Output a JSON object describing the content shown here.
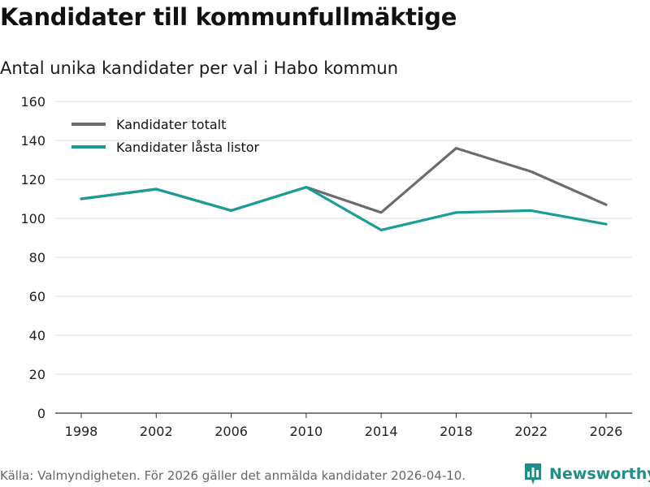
{
  "title": "Kandidater till kommunfullmäktige",
  "subtitle": "Antal unika kandidater per val i Habo kommun",
  "footer": {
    "source": "Källa: Valmyndigheten. För 2026 gäller det anmälda kandidater 2026-04-10."
  },
  "brand": {
    "name": "Newsworthy",
    "icon": "bar-chart-logo-icon",
    "color": "#1f8e86"
  },
  "chart_data": {
    "type": "line",
    "title": "Kandidater till kommunfullmäktige",
    "subtitle": "Antal unika kandidater per val i Habo kommun",
    "xlabel": "",
    "ylabel": "",
    "x": [
      "1998",
      "2002",
      "2006",
      "2010",
      "2014",
      "2018",
      "2022",
      "2026"
    ],
    "ylim": [
      0,
      160
    ],
    "yticks": [
      0,
      20,
      40,
      60,
      80,
      100,
      120,
      140,
      160
    ],
    "grid": true,
    "legend": "top-left",
    "series": [
      {
        "name": "Kandidater totalt",
        "color": "#6b6b70",
        "values": [
          110,
          115,
          104,
          116,
          103,
          136,
          124,
          107
        ]
      },
      {
        "name": "Kandidater låsta listor",
        "color": "#1a9d94",
        "values": [
          110,
          115,
          104,
          116,
          94,
          103,
          104,
          97
        ]
      }
    ]
  }
}
